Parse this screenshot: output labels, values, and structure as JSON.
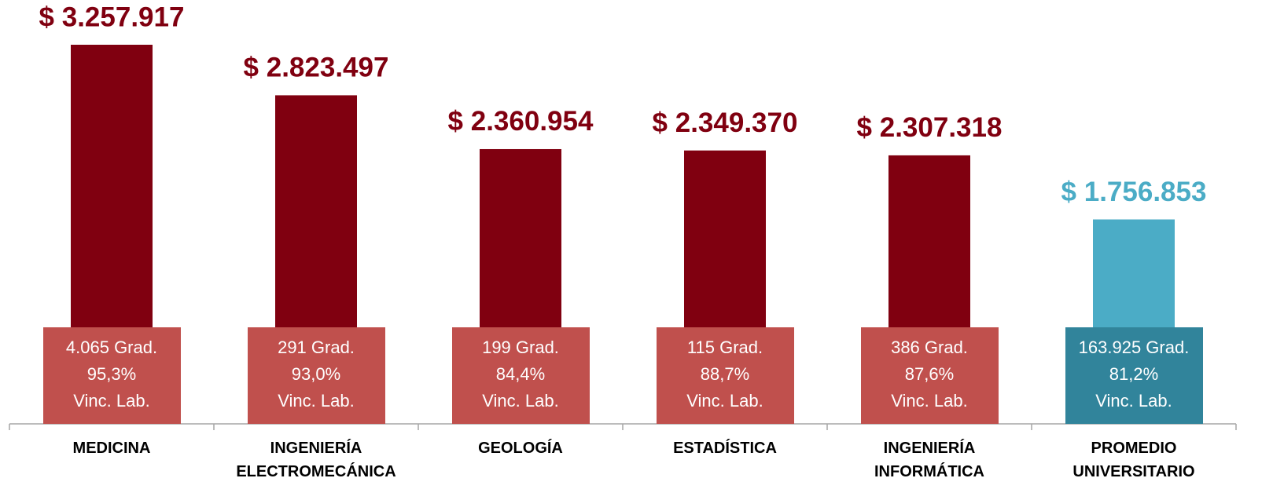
{
  "chart_data": {
    "type": "bar",
    "categories": [
      "MEDICINA",
      "INGENIERÍA ELECTROMECÁNICA",
      "GEOLOGÍA",
      "ESTADÍSTICA",
      "INGENIERÍA INFORMÁTICA",
      "PROMEDIO UNIVERSITARIO"
    ],
    "values": [
      3257917,
      2823497,
      2360954,
      2349370,
      2307318,
      1756853
    ],
    "value_labels": [
      "$ 3.257.917",
      "$ 2.823.497",
      "$ 2.360.954",
      "$ 2.349.370",
      "$ 2.307.318",
      "$ 1.756.853"
    ],
    "colors": [
      "#800010",
      "#800010",
      "#800010",
      "#800010",
      "#800010",
      "#4bacc6"
    ],
    "box_colors": [
      "#c0504d",
      "#c0504d",
      "#c0504d",
      "#c0504d",
      "#c0504d",
      "#31849b"
    ],
    "box_labels": [
      [
        "4.065 Grad.",
        "95,3%",
        "Vinc. Lab."
      ],
      [
        "291 Grad.",
        "93,0%",
        "Vinc. Lab."
      ],
      [
        "199 Grad.",
        "84,4%",
        "Vinc. Lab."
      ],
      [
        "115 Grad.",
        "88,7%",
        "Vinc. Lab."
      ],
      [
        "386 Grad.",
        "87,6%",
        "Vinc. Lab."
      ],
      [
        "163.925 Grad.",
        "81,2%",
        "Vinc. Lab."
      ]
    ]
  }
}
